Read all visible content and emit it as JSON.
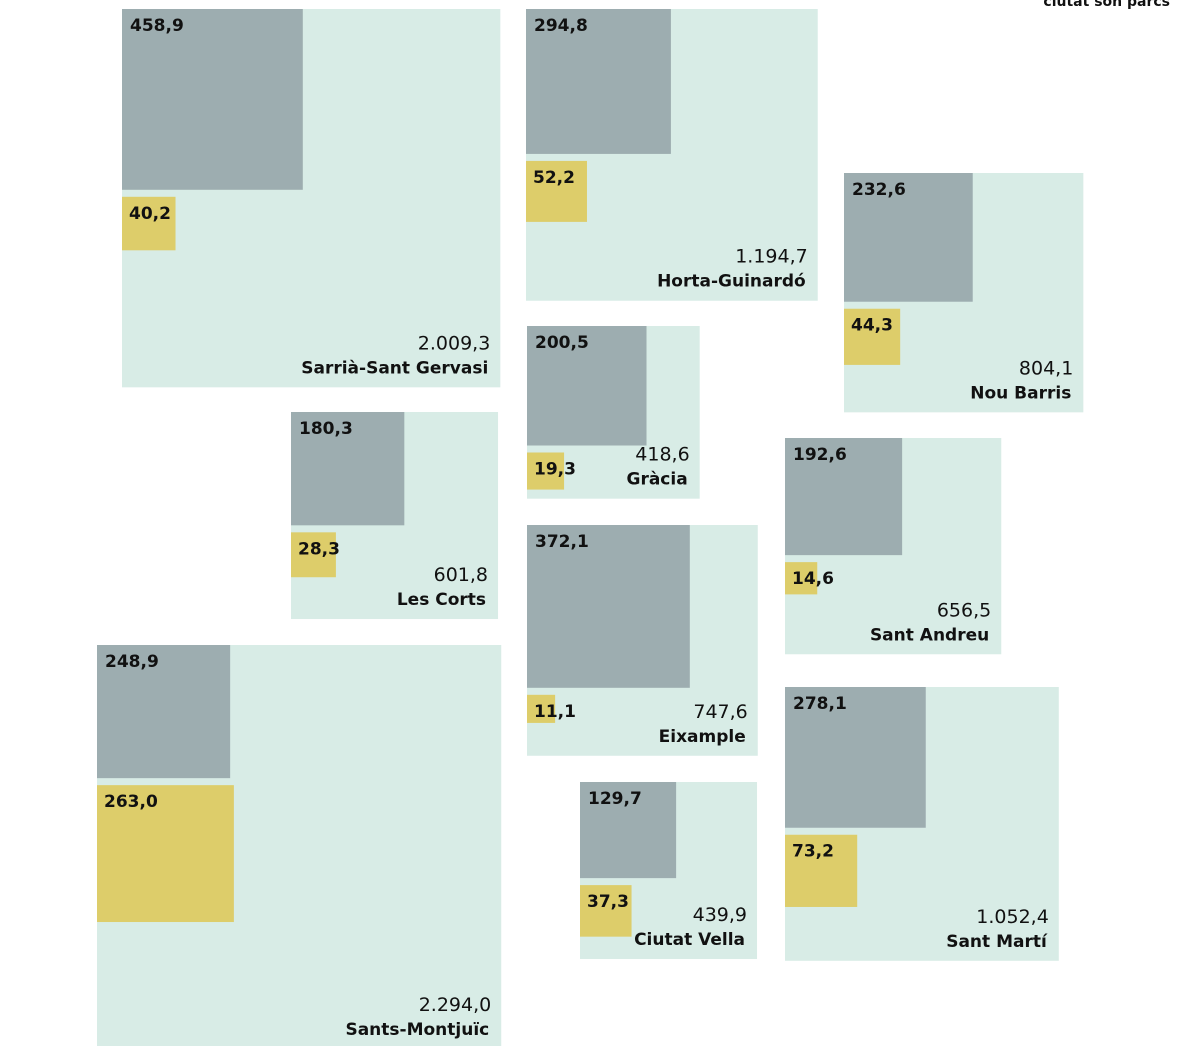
{
  "chart_data": {
    "type": "squares",
    "note": "ciutat són parcs",
    "categories": [
      "Sarrià-Sant Gervasi",
      "Horta-Guinardó",
      "Nou Barris",
      "Gràcia",
      "Les Corts",
      "Sant Andreu",
      "Eixample",
      "Sants-Montjuïc",
      "Ciutat Vella",
      "Sant Martí"
    ],
    "series": [
      {
        "color": "#d8ece6",
        "values": [
          2009.3,
          1194.7,
          804.1,
          418.6,
          601.8,
          656.5,
          747.6,
          2294.0,
          439.9,
          1052.4
        ],
        "value_labels": [
          "2.009,3",
          "1.194,7",
          "804,1",
          "418,6",
          "601,8",
          "656,5",
          "747,6",
          "2.294,0",
          "439,9",
          "1.052,4"
        ]
      },
      {
        "color": "#9dadb0",
        "values": [
          458.9,
          294.8,
          232.6,
          200.5,
          180.3,
          192.6,
          372.1,
          248.9,
          129.7,
          278.1
        ],
        "value_labels": [
          "458,9",
          "294,8",
          "232,6",
          "200,5",
          "180,3",
          "192,6",
          "372,1",
          "248,9",
          "129,7",
          "278,1"
        ]
      },
      {
        "color": "#ddcd6a",
        "values": [
          40.2,
          52.2,
          44.3,
          19.3,
          28.3,
          14.6,
          11.1,
          263.0,
          37.3,
          73.2
        ],
        "value_labels": [
          "40,2",
          "52,2",
          "44,3",
          "19,3",
          "28,3",
          "14,6",
          "11,1",
          "263,0",
          "37,3",
          "73,2"
        ]
      }
    ]
  }
}
